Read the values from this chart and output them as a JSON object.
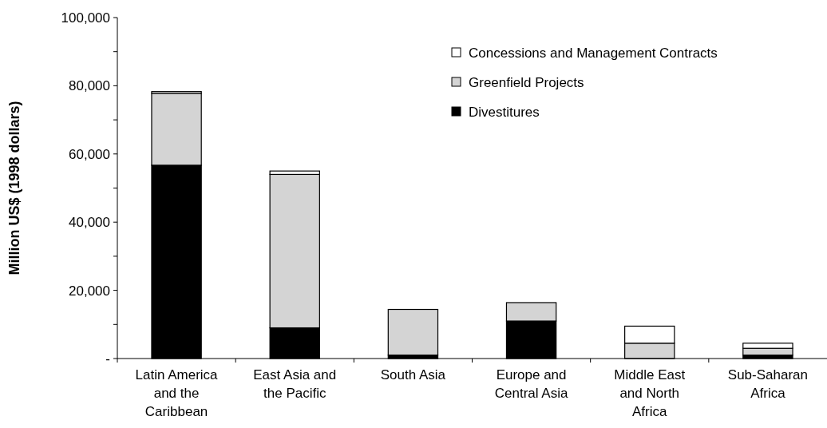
{
  "chart_data": {
    "type": "bar",
    "stacked": true,
    "ylabel": "Million US$ (1998 dollars)",
    "categories": [
      "Latin America and the Caribbean",
      "East Asia and the Pacific",
      "South Asia",
      "Europe and Central Asia",
      "Middle East and North Africa",
      "Sub-Saharan Africa"
    ],
    "series": [
      {
        "name": "Divestitures",
        "color": "#000000",
        "values": [
          56700,
          9000,
          1000,
          11000,
          0,
          1000
        ]
      },
      {
        "name": "Greenfield Projects",
        "color": "#d4d4d4",
        "values": [
          21100,
          45000,
          13400,
          5400,
          4500,
          2000
        ]
      },
      {
        "name": "Concessions and Management Contracts",
        "color": "#ffffff",
        "values": [
          500,
          1000,
          0,
          0,
          5000,
          1500
        ]
      }
    ],
    "ylim": [
      0,
      100000
    ],
    "yticks": [
      {
        "value": 0,
        "label": "-"
      },
      {
        "value": 10000,
        "label": null
      },
      {
        "value": 20000,
        "label": "20,000"
      },
      {
        "value": 30000,
        "label": null
      },
      {
        "value": 40000,
        "label": "40,000"
      },
      {
        "value": 50000,
        "label": null
      },
      {
        "value": 60000,
        "label": "60,000"
      },
      {
        "value": 70000,
        "label": null
      },
      {
        "value": 80000,
        "label": "80,000"
      },
      {
        "value": 90000,
        "label": null
      },
      {
        "value": 100000,
        "label": "100,000"
      }
    ],
    "grid": false,
    "legend": "top right"
  }
}
